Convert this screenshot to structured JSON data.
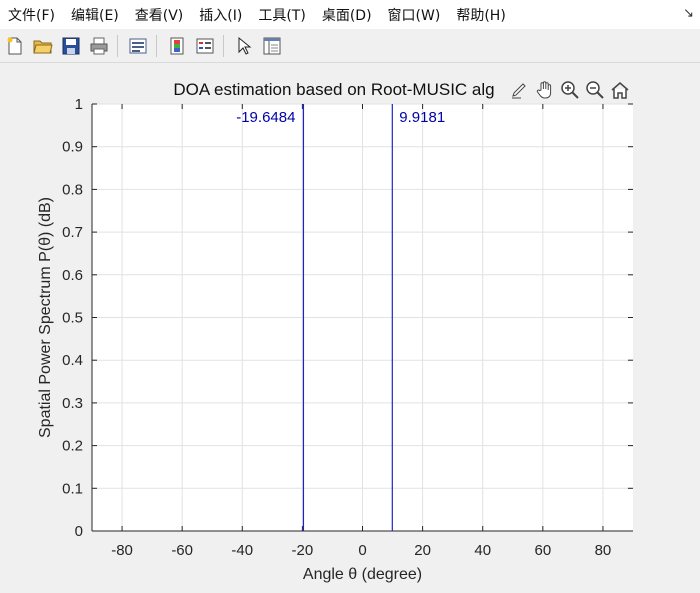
{
  "menu": {
    "items": [
      "文件(F)",
      "编辑(E)",
      "查看(V)",
      "插入(I)",
      "工具(T)",
      "桌面(D)",
      "窗口(W)",
      "帮助(H)"
    ],
    "corner_glyph": "↘"
  },
  "toolbar": {
    "buttons": [
      "new-file-icon",
      "open-folder-icon",
      "save-icon",
      "print-icon",
      "print-preview-icon",
      "colorbar-icon",
      "legend-icon",
      "pointer-icon",
      "property-inspector-icon"
    ]
  },
  "axes_toolbar": {
    "buttons": [
      "brush-icon",
      "pan-hand-icon",
      "zoom-in-icon",
      "zoom-out-icon",
      "home-icon"
    ]
  },
  "chart_data": {
    "type": "line",
    "title": "DOA estimation based on Root-MUSIC alg",
    "xlabel": "Angle θ (degree)",
    "ylabel": "Spatial Power Spectrum P(θ) (dB)",
    "xlim": [
      -90,
      90
    ],
    "ylim": [
      0,
      1
    ],
    "xticks": [
      -80,
      -60,
      -40,
      -20,
      0,
      20,
      40,
      60,
      80
    ],
    "yticks": [
      0,
      0.1,
      0.2,
      0.3,
      0.4,
      0.5,
      0.6,
      0.7,
      0.8,
      0.9,
      1
    ],
    "grid": true,
    "series": [
      {
        "color": "#2222cc",
        "x": [
          -19.6484,
          -19.6484
        ],
        "y": [
          0,
          1
        ]
      },
      {
        "color": "#2222cc",
        "x": [
          9.9181,
          9.9181
        ],
        "y": [
          0,
          1
        ]
      }
    ],
    "annotations": [
      {
        "text": "-19.6484",
        "x": -19.6484,
        "y": 0.97,
        "anchor": "end"
      },
      {
        "text": "9.9181",
        "x": 9.9181,
        "y": 0.97,
        "anchor": "start"
      }
    ],
    "colors": {
      "line": "#2222cc",
      "label": "#0000aa",
      "grid": "#e2e2e2",
      "axis": "#262626"
    }
  }
}
